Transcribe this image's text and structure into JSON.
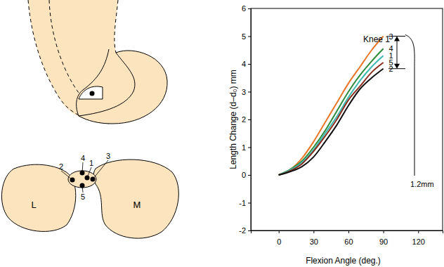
{
  "chart_data": {
    "type": "line",
    "x_label": "Flexion Angle (deg.)",
    "y_label": "Length Change (d–d₀) mm",
    "x": [
      0,
      10,
      20,
      30,
      40,
      50,
      60,
      70,
      80,
      90
    ],
    "series": [
      {
        "name": "3",
        "color": "#e8772a",
        "values": [
          0,
          0.2,
          0.6,
          1.2,
          1.9,
          2.6,
          3.3,
          3.9,
          4.5,
          5.0
        ]
      },
      {
        "name": "4",
        "color": "#2e8b3a",
        "values": [
          0,
          0.2,
          0.5,
          1.0,
          1.6,
          2.3,
          3.0,
          3.6,
          4.1,
          4.55
        ]
      },
      {
        "name": "1",
        "color": "#3bbab2",
        "values": [
          0,
          0.18,
          0.45,
          0.9,
          1.5,
          2.1,
          2.8,
          3.4,
          3.9,
          4.3
        ]
      },
      {
        "name": "5",
        "color": "#8b2e1e",
        "values": [
          0,
          0.15,
          0.4,
          0.85,
          1.4,
          2.0,
          2.7,
          3.2,
          3.7,
          4.05
        ]
      },
      {
        "name": "2",
        "color": "#111111",
        "values": [
          0,
          0.12,
          0.3,
          0.65,
          1.2,
          1.8,
          2.5,
          3.1,
          3.5,
          3.83
        ]
      }
    ],
    "xlim": [
      -24,
      141
    ],
    "xticks": [
      0,
      30,
      60,
      90,
      120
    ],
    "ylim": [
      -2,
      6
    ],
    "yticks": [
      -2,
      -1,
      0,
      1,
      2,
      3,
      4,
      5,
      6
    ],
    "annotations": [
      {
        "text": "Knee 1"
      },
      {
        "text": "1.2mm",
        "from": 3.83,
        "to": 5.0
      }
    ]
  },
  "diagram": {
    "regions": [
      "L",
      "M"
    ],
    "points": [
      "1",
      "2",
      "3",
      "4",
      "5"
    ]
  }
}
